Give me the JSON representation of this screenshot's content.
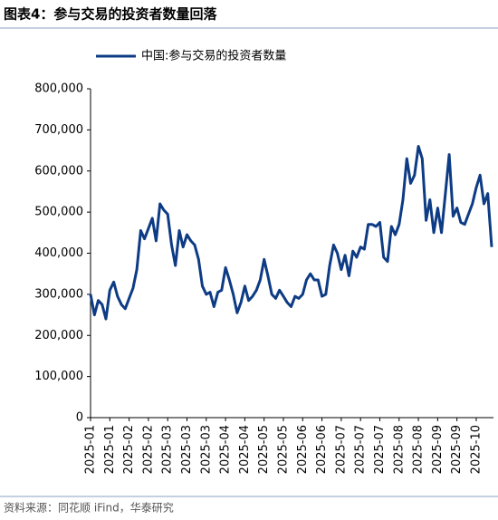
{
  "chart_data": {
    "type": "line",
    "title": "图表4：参与交易的投资者数量回落",
    "source": "资料来源：同花顺 iFind，华泰研究",
    "categories": [
      "2025-01",
      null,
      null,
      null,
      null,
      "2025-01",
      null,
      null,
      null,
      null,
      "2025-02",
      null,
      null,
      null,
      null,
      "2025-02",
      null,
      null,
      null,
      null,
      "2025-03",
      null,
      null,
      null,
      null,
      "2025-03",
      null,
      null,
      null,
      null,
      "2025-03",
      null,
      null,
      null,
      null,
      "2025-04",
      null,
      null,
      null,
      null,
      "2025-04",
      null,
      null,
      null,
      null,
      "2025-05",
      null,
      null,
      null,
      null,
      "2025-05",
      null,
      null,
      null,
      null,
      "2025-06",
      null,
      null,
      null,
      null,
      "2025-06",
      null,
      null,
      null,
      null,
      "2025-07",
      null,
      null,
      null,
      null,
      "2025-07",
      null,
      null,
      null,
      null,
      "2025-07",
      null,
      null,
      null,
      null,
      "2025-08",
      null,
      null,
      null,
      null,
      "2025-08",
      null,
      null,
      null,
      null,
      "2025-09",
      null,
      null,
      null,
      null,
      "2025-09",
      null,
      null,
      null,
      null,
      "2025-10",
      null,
      null,
      null,
      null
    ],
    "series": [
      {
        "name": "中国:参与交易的投资者数量",
        "color": "#0d3b84",
        "values": [
          300000,
          250000,
          285000,
          275000,
          240000,
          310000,
          330000,
          295000,
          275000,
          265000,
          290000,
          315000,
          360000,
          455000,
          435000,
          460000,
          485000,
          430000,
          520000,
          505000,
          495000,
          420000,
          370000,
          455000,
          415000,
          445000,
          430000,
          420000,
          385000,
          320000,
          300000,
          305000,
          270000,
          305000,
          310000,
          365000,
          335000,
          300000,
          255000,
          280000,
          320000,
          285000,
          295000,
          310000,
          335000,
          385000,
          345000,
          300000,
          290000,
          310000,
          295000,
          280000,
          270000,
          295000,
          290000,
          300000,
          335000,
          350000,
          335000,
          335000,
          295000,
          300000,
          370000,
          420000,
          400000,
          360000,
          395000,
          345000,
          405000,
          390000,
          415000,
          410000,
          470000,
          470000,
          465000,
          475000,
          390000,
          380000,
          465000,
          445000,
          470000,
          530000,
          630000,
          570000,
          590000,
          660000,
          630000,
          480000,
          530000,
          450000,
          510000,
          450000,
          545000,
          640000,
          490000,
          510000,
          475000,
          470000,
          495000,
          520000,
          560000,
          590000,
          520000,
          545000,
          415000
        ]
      }
    ],
    "ylim": [
      0,
      800000
    ],
    "yticks": [
      0,
      {
        "value": 100000,
        "label": "100,000"
      },
      {
        "value": 200000,
        "label": "200,000"
      },
      {
        "value": 300000,
        "label": "300,000"
      },
      {
        "value": 400000,
        "label": "400,000"
      },
      {
        "value": 500000,
        "label": "500,000"
      },
      {
        "value": 600000,
        "label": "600,000"
      },
      {
        "value": 700000,
        "label": "700,000"
      },
      {
        "value": 800000,
        "label": "800,000"
      }
    ],
    "grid": false
  }
}
